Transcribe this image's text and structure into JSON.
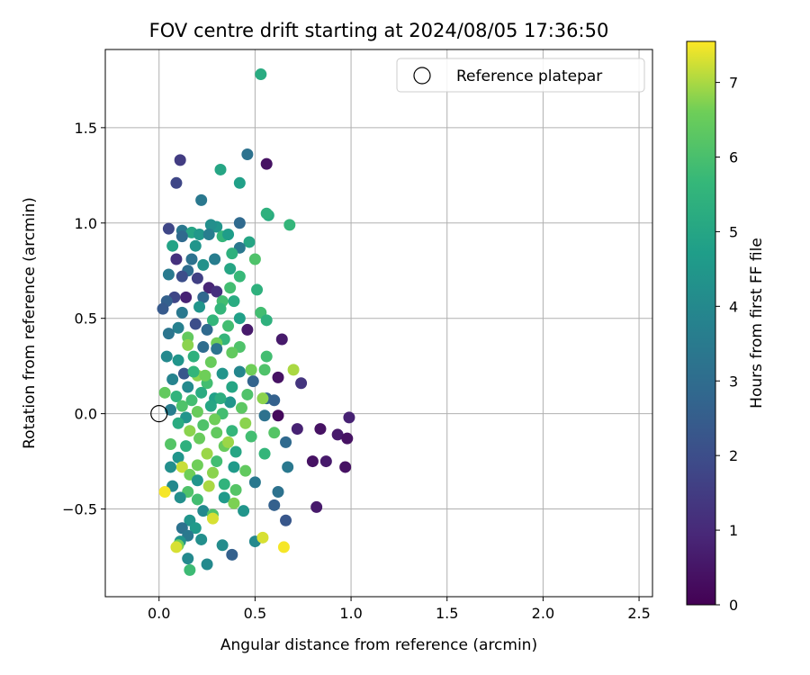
{
  "chart_data": {
    "type": "scatter",
    "title": "FOV centre drift starting at 2024/08/05 17:36:50",
    "xlabel": "Angular distance from reference (arcmin)",
    "ylabel": "Rotation from reference (arcmin)",
    "xlim": [
      -0.28,
      2.57
    ],
    "ylim": [
      -0.96,
      1.91
    ],
    "xticks": [
      0.0,
      0.5,
      1.0,
      1.5,
      2.0,
      2.5
    ],
    "xtick_labels": [
      "0.0",
      "0.5",
      "1.0",
      "1.5",
      "2.0",
      "2.5"
    ],
    "yticks": [
      -0.5,
      0.0,
      0.5,
      1.0,
      1.5
    ],
    "ytick_labels": [
      "−0.5",
      "0.0",
      "0.5",
      "1.0",
      "1.5"
    ],
    "grid": true,
    "legend": {
      "placement": "top-right",
      "entries": [
        "Reference platepar"
      ]
    },
    "reference_point": {
      "label": "Reference platepar",
      "x": 0.0,
      "y": 0.0,
      "marker": "open-circle"
    },
    "colorbar": {
      "label": "Hours from first FF file",
      "min": 0,
      "max": 7.55,
      "ticks": [
        0,
        1,
        2,
        3,
        4,
        5,
        6,
        7
      ],
      "tick_labels": [
        "0",
        "1",
        "2",
        "3",
        "4",
        "5",
        "6",
        "7"
      ],
      "colormap": "viridis"
    },
    "points": [
      [
        0.53,
        1.78,
        5.2
      ],
      [
        0.56,
        1.31,
        0.4
      ],
      [
        0.46,
        1.36,
        3.2
      ],
      [
        0.11,
        1.33,
        1.5
      ],
      [
        0.32,
        1.28,
        5.0
      ],
      [
        0.42,
        1.21,
        4.8
      ],
      [
        0.09,
        1.21,
        1.8
      ],
      [
        0.22,
        1.12,
        3.4
      ],
      [
        0.57,
        1.04,
        5.2
      ],
      [
        0.56,
        1.05,
        5.4
      ],
      [
        0.68,
        0.99,
        5.6
      ],
      [
        0.42,
        1.0,
        2.9
      ],
      [
        0.3,
        0.98,
        4.4
      ],
      [
        0.27,
        0.99,
        4.2
      ],
      [
        0.05,
        0.97,
        1.8
      ],
      [
        0.12,
        0.96,
        3.4
      ],
      [
        0.17,
        0.95,
        5.0
      ],
      [
        0.21,
        0.94,
        4.5
      ],
      [
        0.26,
        0.94,
        3.6
      ],
      [
        0.33,
        0.93,
        5.6
      ],
      [
        0.36,
        0.94,
        4.7
      ],
      [
        0.12,
        0.93,
        2.9
      ],
      [
        0.47,
        0.9,
        5.0
      ],
      [
        0.42,
        0.87,
        3.4
      ],
      [
        0.07,
        0.88,
        4.9
      ],
      [
        0.19,
        0.88,
        4.4
      ],
      [
        0.38,
        0.84,
        5.4
      ],
      [
        0.5,
        0.81,
        6.1
      ],
      [
        0.09,
        0.81,
        1.2
      ],
      [
        0.17,
        0.81,
        3.2
      ],
      [
        0.29,
        0.81,
        3.6
      ],
      [
        0.23,
        0.78,
        4.3
      ],
      [
        0.37,
        0.76,
        5.0
      ],
      [
        0.15,
        0.75,
        3.0
      ],
      [
        0.05,
        0.73,
        3.5
      ],
      [
        0.12,
        0.72,
        2.0
      ],
      [
        0.42,
        0.72,
        5.7
      ],
      [
        0.2,
        0.71,
        1.6
      ],
      [
        0.26,
        0.66,
        0.9
      ],
      [
        0.37,
        0.66,
        5.9
      ],
      [
        0.3,
        0.64,
        1.2
      ],
      [
        0.51,
        0.65,
        5.4
      ],
      [
        0.08,
        0.61,
        1.8
      ],
      [
        0.14,
        0.61,
        0.8
      ],
      [
        0.23,
        0.61,
        2.8
      ],
      [
        0.33,
        0.59,
        5.9
      ],
      [
        0.39,
        0.59,
        5.2
      ],
      [
        0.04,
        0.59,
        2.6
      ],
      [
        0.21,
        0.56,
        4.4
      ],
      [
        0.32,
        0.55,
        5.6
      ],
      [
        0.12,
        0.53,
        3.4
      ],
      [
        0.53,
        0.53,
        5.9
      ],
      [
        0.02,
        0.55,
        2.4
      ],
      [
        0.42,
        0.5,
        4.8
      ],
      [
        0.28,
        0.49,
        5.6
      ],
      [
        0.56,
        0.49,
        5.4
      ],
      [
        0.19,
        0.47,
        2.0
      ],
      [
        0.36,
        0.46,
        5.9
      ],
      [
        0.1,
        0.45,
        3.7
      ],
      [
        0.25,
        0.44,
        2.9
      ],
      [
        0.46,
        0.44,
        0.6
      ],
      [
        0.05,
        0.42,
        3.3
      ],
      [
        0.15,
        0.4,
        6.4
      ],
      [
        0.34,
        0.39,
        5.6
      ],
      [
        0.64,
        0.39,
        0.6
      ],
      [
        0.3,
        0.37,
        6.6
      ],
      [
        0.42,
        0.35,
        6.1
      ],
      [
        0.15,
        0.36,
        6.8
      ],
      [
        0.23,
        0.35,
        3.0
      ],
      [
        0.3,
        0.34,
        3.3
      ],
      [
        0.38,
        0.32,
        6.4
      ],
      [
        0.04,
        0.3,
        4.0
      ],
      [
        0.56,
        0.3,
        5.9
      ],
      [
        0.18,
        0.3,
        5.4
      ],
      [
        0.1,
        0.28,
        4.4
      ],
      [
        0.27,
        0.27,
        6.5
      ],
      [
        0.48,
        0.23,
        6.6
      ],
      [
        0.55,
        0.23,
        6.1
      ],
      [
        0.42,
        0.22,
        3.9
      ],
      [
        0.7,
        0.23,
        7.0
      ],
      [
        0.13,
        0.21,
        2.3
      ],
      [
        0.2,
        0.2,
        6.8
      ],
      [
        0.33,
        0.21,
        4.4
      ],
      [
        0.62,
        0.19,
        0.4
      ],
      [
        0.07,
        0.18,
        3.8
      ],
      [
        0.25,
        0.16,
        5.9
      ],
      [
        0.49,
        0.17,
        2.7
      ],
      [
        0.74,
        0.16,
        1.3
      ],
      [
        0.15,
        0.14,
        4.0
      ],
      [
        0.38,
        0.14,
        5.0
      ],
      [
        0.03,
        0.11,
        6.4
      ],
      [
        0.22,
        0.11,
        5.2
      ],
      [
        0.46,
        0.1,
        6.1
      ],
      [
        0.09,
        0.09,
        5.5
      ],
      [
        0.29,
        0.08,
        4.8
      ],
      [
        0.56,
        0.08,
        2.8
      ],
      [
        0.6,
        0.07,
        2.6
      ],
      [
        0.54,
        0.08,
        6.8
      ],
      [
        0.17,
        0.07,
        5.9
      ],
      [
        0.37,
        0.06,
        4.4
      ],
      [
        0.12,
        0.04,
        6.1
      ],
      [
        0.27,
        0.04,
        5.0
      ],
      [
        0.43,
        0.03,
        6.3
      ],
      [
        0.06,
        0.02,
        3.6
      ],
      [
        0.2,
        0.01,
        6.5
      ],
      [
        0.33,
        0.0,
        5.9
      ],
      [
        0.62,
        -0.01,
        0.2
      ],
      [
        0.55,
        -0.01,
        3.2
      ],
      [
        0.99,
        -0.02,
        0.8
      ],
      [
        0.14,
        -0.02,
        4.4
      ],
      [
        0.29,
        -0.03,
        6.6
      ],
      [
        0.45,
        -0.05,
        6.8
      ],
      [
        0.1,
        -0.05,
        5.2
      ],
      [
        0.23,
        -0.06,
        6.1
      ],
      [
        0.72,
        -0.08,
        0.8
      ],
      [
        0.84,
        -0.08,
        0.4
      ],
      [
        0.38,
        -0.09,
        5.6
      ],
      [
        0.16,
        -0.09,
        6.8
      ],
      [
        0.3,
        -0.1,
        6.4
      ],
      [
        0.6,
        -0.1,
        6.2
      ],
      [
        0.93,
        -0.11,
        0.6
      ],
      [
        0.48,
        -0.12,
        5.9
      ],
      [
        0.98,
        -0.13,
        0.4
      ],
      [
        0.21,
        -0.13,
        6.5
      ],
      [
        0.66,
        -0.15,
        2.9
      ],
      [
        0.06,
        -0.16,
        6.2
      ],
      [
        0.34,
        -0.17,
        6.5
      ],
      [
        0.14,
        -0.17,
        5.4
      ],
      [
        0.4,
        -0.2,
        5.0
      ],
      [
        0.55,
        -0.21,
        5.6
      ],
      [
        0.25,
        -0.21,
        6.9
      ],
      [
        0.1,
        -0.23,
        4.4
      ],
      [
        0.8,
        -0.25,
        0.4
      ],
      [
        0.87,
        -0.25,
        0.6
      ],
      [
        0.3,
        -0.25,
        5.9
      ],
      [
        0.2,
        -0.27,
        6.6
      ],
      [
        0.12,
        -0.28,
        7.2
      ],
      [
        0.67,
        -0.28,
        3.4
      ],
      [
        0.39,
        -0.28,
        4.6
      ],
      [
        0.97,
        -0.28,
        0.4
      ],
      [
        0.06,
        -0.28,
        4.2
      ],
      [
        0.45,
        -0.3,
        6.4
      ],
      [
        0.28,
        -0.31,
        6.8
      ],
      [
        0.16,
        -0.32,
        6.6
      ],
      [
        0.2,
        -0.35,
        4.4
      ],
      [
        0.5,
        -0.36,
        3.4
      ],
      [
        0.34,
        -0.37,
        5.5
      ],
      [
        0.26,
        -0.38,
        7.0
      ],
      [
        0.07,
        -0.38,
        4.0
      ],
      [
        0.4,
        -0.4,
        6.2
      ],
      [
        0.15,
        -0.41,
        6.1
      ],
      [
        0.62,
        -0.41,
        3.2
      ],
      [
        0.03,
        -0.41,
        7.5
      ],
      [
        0.34,
        -0.44,
        4.6
      ],
      [
        0.11,
        -0.44,
        4.2
      ],
      [
        0.2,
        -0.45,
        5.9
      ],
      [
        0.39,
        -0.47,
        6.7
      ],
      [
        0.6,
        -0.48,
        2.6
      ],
      [
        0.82,
        -0.49,
        0.6
      ],
      [
        0.23,
        -0.51,
        4.0
      ],
      [
        0.44,
        -0.51,
        4.4
      ],
      [
        0.28,
        -0.53,
        6.1
      ],
      [
        0.28,
        -0.55,
        7.3
      ],
      [
        0.16,
        -0.56,
        4.4
      ],
      [
        0.66,
        -0.56,
        2.3
      ],
      [
        0.12,
        -0.6,
        3.2
      ],
      [
        0.19,
        -0.6,
        4.6
      ],
      [
        0.15,
        -0.64,
        3.4
      ],
      [
        0.22,
        -0.66,
        4.2
      ],
      [
        0.5,
        -0.67,
        4.0
      ],
      [
        0.54,
        -0.65,
        7.3
      ],
      [
        0.11,
        -0.67,
        4.4
      ],
      [
        0.33,
        -0.69,
        4.1
      ],
      [
        0.1,
        -0.69,
        6.6
      ],
      [
        0.09,
        -0.7,
        7.3
      ],
      [
        0.65,
        -0.7,
        7.5
      ],
      [
        0.38,
        -0.74,
        2.6
      ],
      [
        0.15,
        -0.76,
        4.0
      ],
      [
        0.25,
        -0.79,
        4.0
      ],
      [
        0.16,
        -0.82,
        5.8
      ],
      [
        0.24,
        0.2,
        6.6
      ],
      [
        0.36,
        -0.15,
        6.9
      ],
      [
        0.18,
        0.22,
        5.6
      ],
      [
        0.32,
        0.08,
        5.3
      ]
    ]
  }
}
